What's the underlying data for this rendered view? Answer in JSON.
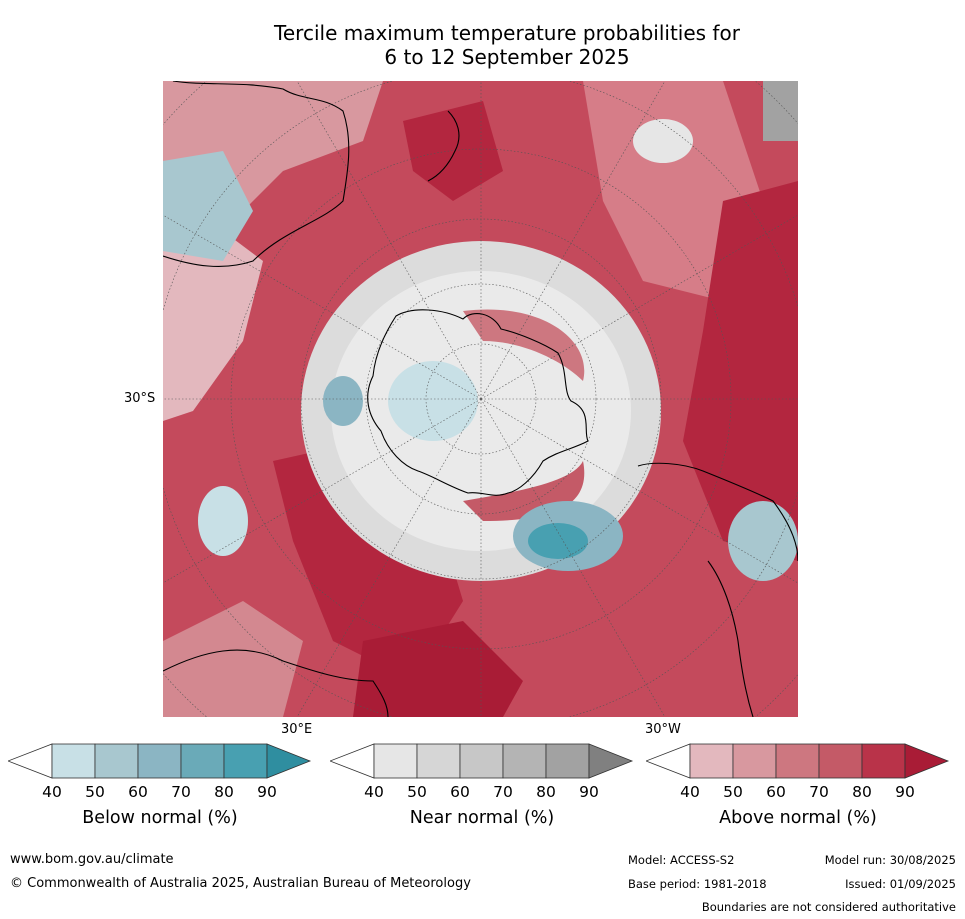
{
  "title": "Tercile maximum temperature probabilities for\n6 to 12 September 2025",
  "map": {
    "lat_label": "30°S",
    "lon_labels": {
      "east": "30°E",
      "west": "30°W"
    },
    "projection": "south-polar-stereographic"
  },
  "legends": [
    {
      "label": "Below normal (%)",
      "ticks": [
        "40",
        "50",
        "60",
        "70",
        "80",
        "90"
      ],
      "colors": [
        "#ffffff",
        "#c8e0e6",
        "#a8c7cf",
        "#8bb5c3",
        "#6aaab8",
        "#48a0b1",
        "#2f8ea0"
      ]
    },
    {
      "label": "Near normal (%)",
      "ticks": [
        "40",
        "50",
        "60",
        "70",
        "80",
        "90"
      ],
      "colors": [
        "#ffffff",
        "#e6e6e6",
        "#d6d6d6",
        "#c7c7c7",
        "#b4b4b4",
        "#a2a2a2",
        "#808080"
      ]
    },
    {
      "label": "Above normal (%)",
      "ticks": [
        "40",
        "50",
        "60",
        "70",
        "80",
        "90"
      ],
      "colors": [
        "#ffffff",
        "#e3b8be",
        "#d8989f",
        "#cd7780",
        "#c45a67",
        "#b93349",
        "#a91c36"
      ]
    }
  ],
  "footer": {
    "website": "www.bom.gov.au/climate",
    "copyright": "© Commonwealth of Australia 2025, Australian Bureau of Meteorology",
    "model": "Model: ACCESS-S2",
    "model_run": "Model run: 30/08/2025",
    "base_period": "Base period: 1981-2018",
    "issued": "Issued: 01/09/2025",
    "disclaimer": "Boundaries are not considered authoritative"
  }
}
